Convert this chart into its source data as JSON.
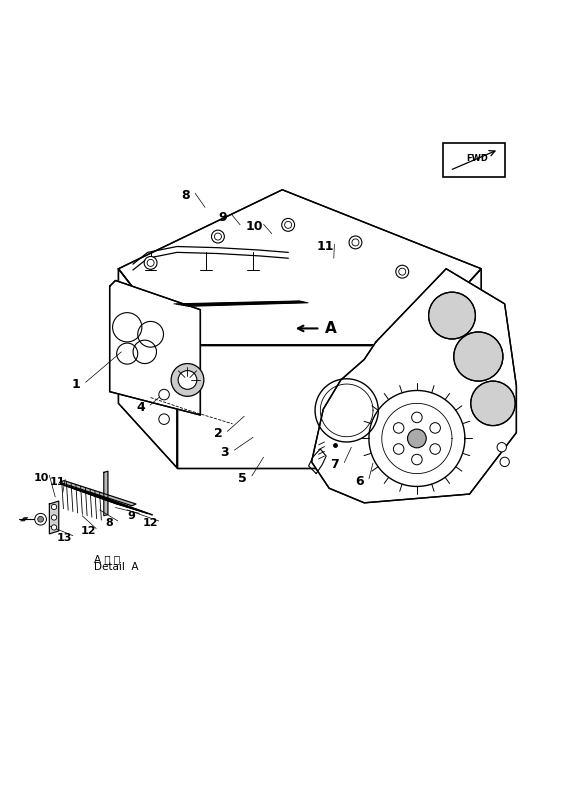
{
  "background_color": "#ffffff",
  "line_color": "#000000",
  "fig_width": 5.88,
  "fig_height": 7.95,
  "dpi": 100,
  "detail_a_line1": "A 詳 細",
  "detail_a_line2": "Detail  A"
}
